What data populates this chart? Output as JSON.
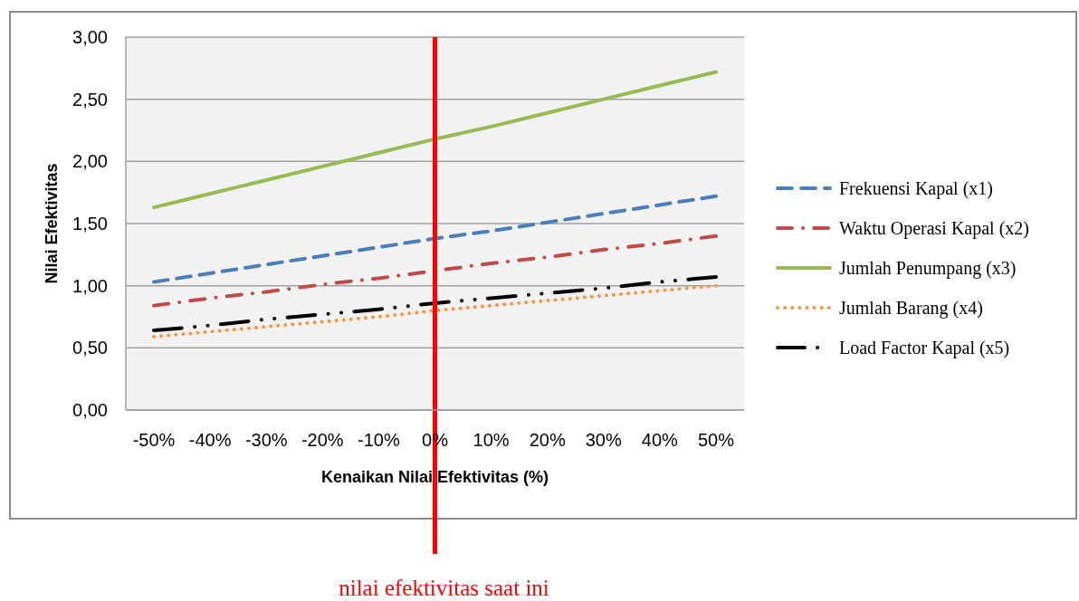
{
  "chart_data": {
    "type": "line",
    "xlabel": "Kenaikan Nilai Efektivitas (%)",
    "ylabel": "Nilai Efektivitas",
    "categories": [
      "-50%",
      "-40%",
      "-30%",
      "-20%",
      "-10%",
      "0%",
      "10%",
      "20%",
      "30%",
      "40%",
      "50%"
    ],
    "series": [
      {
        "name": "Frekuensi Kapal (x1)",
        "color": "#4a7ebb",
        "line_style": "dashed",
        "values": [
          1.03,
          1.1,
          1.17,
          1.24,
          1.31,
          1.38,
          1.44,
          1.51,
          1.58,
          1.65,
          1.72
        ]
      },
      {
        "name": "Waktu Operasi Kapal (x2)",
        "color": "#be4b48",
        "line_style": "dashdot",
        "values": [
          0.84,
          0.9,
          0.95,
          1.01,
          1.06,
          1.12,
          1.18,
          1.23,
          1.29,
          1.34,
          1.4
        ]
      },
      {
        "name": "Jumlah Penumpang (x3)",
        "color": "#98b954",
        "line_style": "solid",
        "values": [
          1.63,
          1.74,
          1.85,
          1.96,
          2.07,
          2.18,
          2.28,
          2.39,
          2.5,
          2.61,
          2.72
        ]
      },
      {
        "name": "Jumlah Barang (x4)",
        "color": "#f79646",
        "line_style": "dotted",
        "values": [
          0.59,
          0.63,
          0.67,
          0.71,
          0.75,
          0.8,
          0.84,
          0.88,
          0.92,
          0.96,
          1.0
        ]
      },
      {
        "name": "Load Factor Kapal (x5)",
        "color": "#000000",
        "line_style": "dashdotdot",
        "values": [
          0.64,
          0.68,
          0.73,
          0.77,
          0.81,
          0.86,
          0.9,
          0.94,
          0.98,
          1.03,
          1.07
        ]
      }
    ],
    "ylim": [
      0,
      3
    ],
    "yticks": [
      {
        "value": 0,
        "label": "0,00"
      },
      {
        "value": 0.5,
        "label": "0,50"
      },
      {
        "value": 1,
        "label": "1,00"
      },
      {
        "value": 1.5,
        "label": "1,50"
      },
      {
        "value": 2,
        "label": "2,00"
      },
      {
        "value": 2.5,
        "label": "2,50"
      },
      {
        "value": 3,
        "label": "3,00"
      }
    ],
    "grid": "y",
    "legend": "right",
    "marker": "none",
    "ref_lines": [
      {
        "axis": "x",
        "value": "0%",
        "label": "nilai efektivitas saat ini",
        "color": "#ff0000"
      }
    ]
  }
}
